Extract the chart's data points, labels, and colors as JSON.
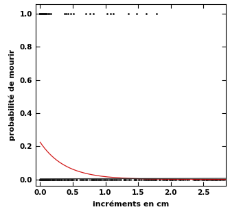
{
  "xlabel": "incréments en cm",
  "ylabel": "probabilité de mourir",
  "xlim": [
    -0.07,
    2.85
  ],
  "ylim": [
    -0.04,
    1.06
  ],
  "yticks": [
    0.0,
    0.2,
    0.4,
    0.6,
    0.8,
    1.0
  ],
  "xticks": [
    0.0,
    0.5,
    1.0,
    1.5,
    2.0,
    2.5
  ],
  "bg_color": "#ffffff",
  "curve_red_color": "#cc0000",
  "curve_dark_color": "#222222",
  "point_color_dead": "#111111",
  "point_color_alive": "#111111",
  "curve_red_start": 0.225,
  "curve_red_decay": 2.6,
  "curve_dark_intercept": 0.004,
  "curve_dark_slope": 0.0008
}
